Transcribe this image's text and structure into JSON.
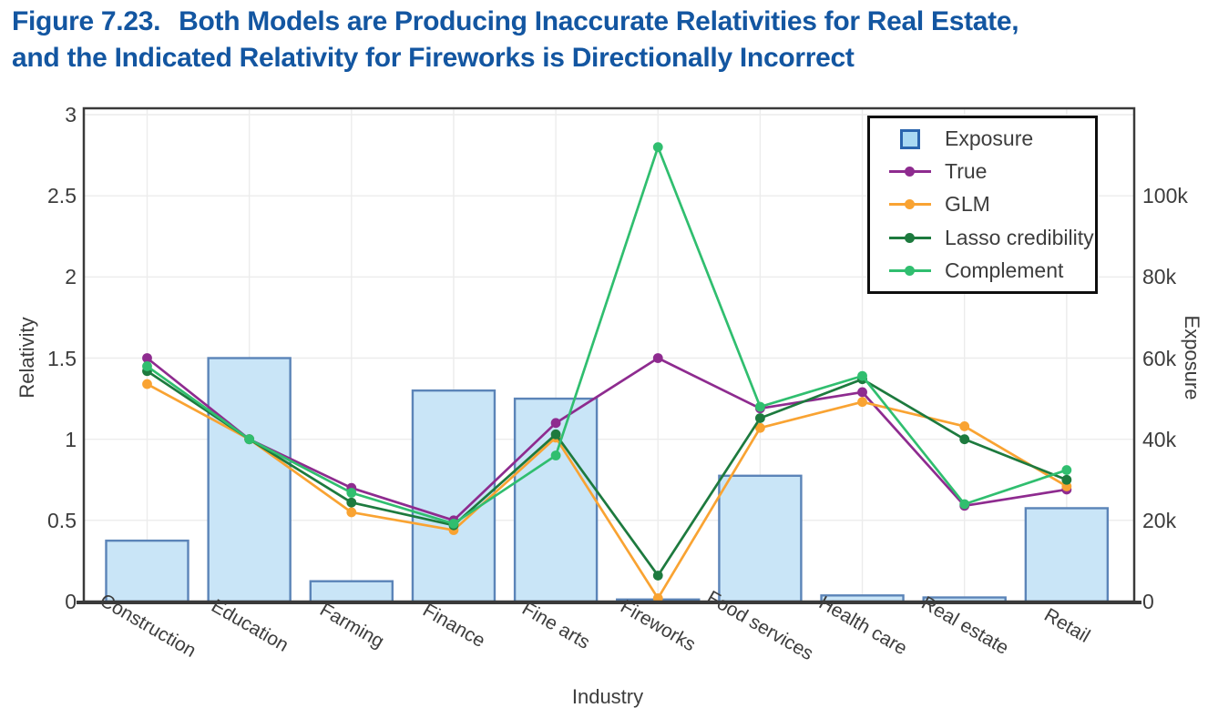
{
  "figure": {
    "title_prefix": "Figure 7.23.",
    "title_line1": "Both Models are Producing Inaccurate Relativities for Real Estate,",
    "title_line2": "and the Indicated Relativity for Fireworks is Directionally Incorrect",
    "title_color": "#1356A1"
  },
  "chart_data": {
    "type": "bar+line",
    "categories": [
      "Construction",
      "Education",
      "Farming",
      "Finance",
      "Fine arts",
      "Fireworks",
      "Food services",
      "Health care",
      "Real estate",
      "Retail"
    ],
    "xlabel": "Industry",
    "left_axis": {
      "label": "Relativity",
      "tick_labels": [
        "0",
        "0.5",
        "1",
        "1.5",
        "2",
        "2.5",
        "3"
      ],
      "tick_values": [
        0,
        0.5,
        1,
        1.5,
        2,
        2.5,
        3
      ],
      "range": [
        0,
        3
      ],
      "grid": true
    },
    "right_axis": {
      "label": "Exposure",
      "tick_labels": [
        "0",
        "20k",
        "40k",
        "60k",
        "80k",
        "100k"
      ],
      "tick_values": [
        0,
        20000,
        40000,
        60000,
        80000,
        100000
      ],
      "range": [
        0,
        120000
      ]
    },
    "bars": {
      "name": "Exposure",
      "axis": "right",
      "fill": "#C9E5F7",
      "stroke": "#5B84B8",
      "values": [
        15000,
        60000,
        5000,
        52000,
        50000,
        500,
        31000,
        1500,
        1000,
        23000
      ]
    },
    "series": [
      {
        "name": "True",
        "color": "#8E2B8F",
        "values": [
          1.5,
          1.0,
          0.7,
          0.5,
          1.1,
          1.5,
          1.19,
          1.29,
          0.59,
          0.69
        ]
      },
      {
        "name": "GLM",
        "color": "#F9A332",
        "values": [
          1.34,
          1.0,
          0.55,
          0.44,
          1.01,
          0.02,
          1.07,
          1.23,
          1.08,
          0.71
        ]
      },
      {
        "name": "Lasso credibility",
        "color": "#1D7A3E",
        "values": [
          1.42,
          1.0,
          0.61,
          0.47,
          1.03,
          0.16,
          1.13,
          1.37,
          1.0,
          0.75
        ]
      },
      {
        "name": "Complement",
        "color": "#30BE6F",
        "values": [
          1.45,
          1.0,
          0.67,
          0.48,
          0.9,
          2.8,
          1.2,
          1.39,
          0.6,
          0.81
        ]
      }
    ],
    "legend": {
      "position": "top-right",
      "entries": [
        "Exposure",
        "True",
        "GLM",
        "Lasso credibility",
        "Complement"
      ],
      "swatch_square_fill": "#A9D9F3",
      "swatch_square_stroke": "#2A65AE"
    }
  }
}
